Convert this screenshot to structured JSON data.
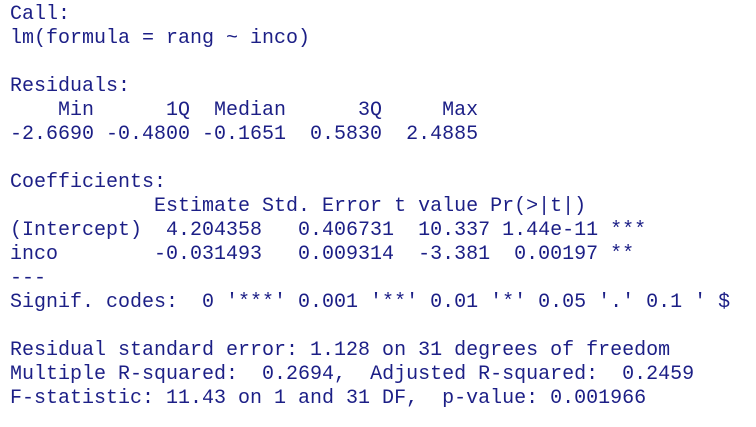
{
  "call": {
    "lines": [
      "Call:",
      "lm(formula = rang ~ inco)"
    ]
  },
  "residuals": {
    "lines": [
      "Residuals:",
      "    Min      1Q  Median      3Q     Max ",
      "-2.6690 -0.4800 -0.1651  0.5830  2.4885 "
    ]
  },
  "coefficients": {
    "lines": [
      "Coefficients:",
      "            Estimate Std. Error t value Pr(>|t|)    ",
      "(Intercept)  4.204358   0.406731  10.337 1.44e-11 ***",
      "inco        -0.031493   0.009314  -3.381  0.00197 ** ",
      "---",
      "Signif. codes:  0 '***' 0.001 '**' 0.01 '*' 0.05 '.' 0.1 ' $"
    ]
  },
  "summary": {
    "lines": [
      "Residual standard error: 1.128 on 31 degrees of freedom",
      "Multiple R-squared:  0.2694,\tAdjusted R-squared:  0.2459 ",
      "F-statistic: 11.43 on 1 and 31 DF,  p-value: 0.001966"
    ]
  }
}
